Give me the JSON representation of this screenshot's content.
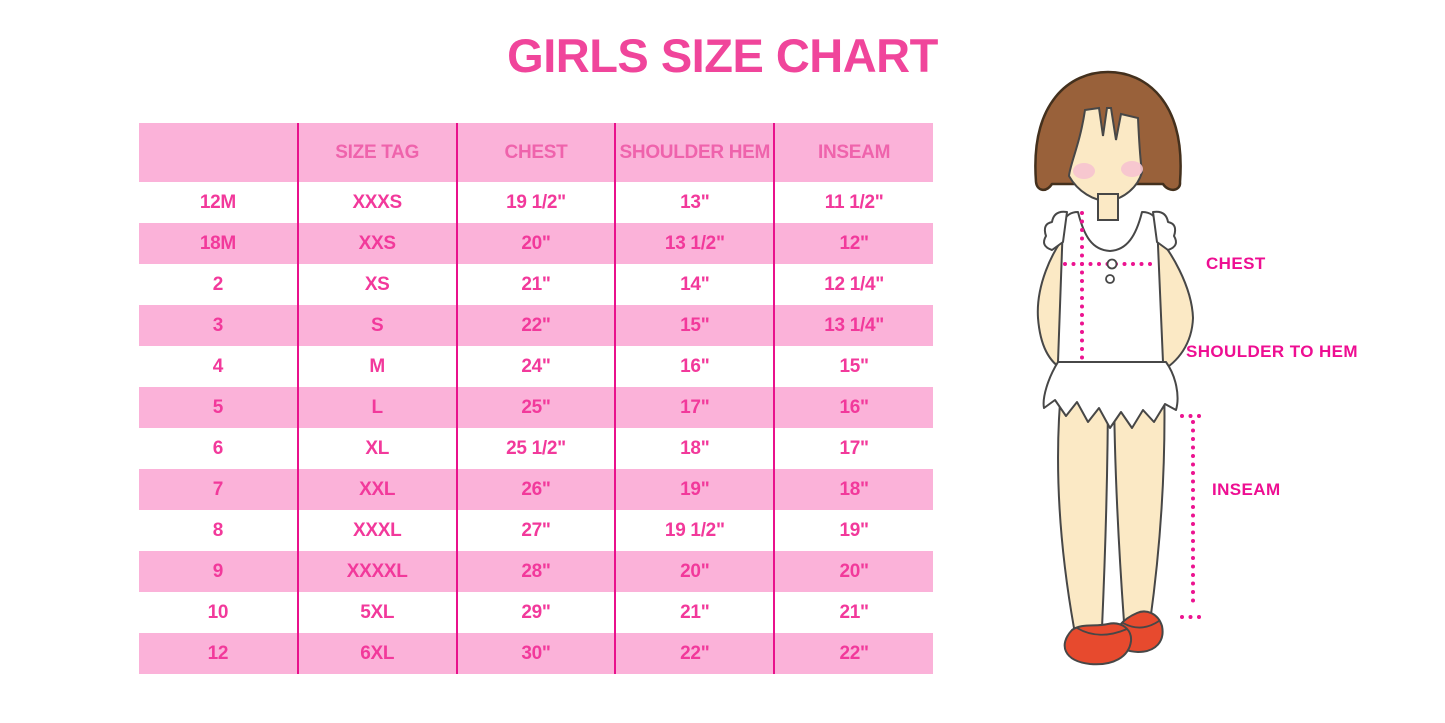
{
  "title": "GIRLS SIZE CHART",
  "colors": {
    "title": "#F0459B",
    "header_text": "#EF63AC",
    "cell_text": "#F2399B",
    "stripe": "#FBB2D9",
    "rule": "#E9118C",
    "label": "#EE0E92",
    "dotted": "#EC1390",
    "hair": "#99613A",
    "hair_outline": "#43301D",
    "skin": "#FBE9C5",
    "outline": "#474747",
    "blush": "#F6C3CF",
    "shoe": "#E74A2E",
    "garment": "#FFFFFF"
  },
  "chart_data": {
    "type": "table",
    "title": "GIRLS SIZE CHART",
    "columns": [
      "",
      "SIZE TAG",
      "CHEST",
      "SHOULDER HEM",
      "INSEAM"
    ],
    "rows": [
      [
        "12M",
        "XXXS",
        "19 1/2\"",
        "13\"",
        "11 1/2\""
      ],
      [
        "18M",
        "XXS",
        "20\"",
        "13 1/2\"",
        "12\""
      ],
      [
        "2",
        "XS",
        "21\"",
        "14\"",
        "12 1/4\""
      ],
      [
        "3",
        "S",
        "22\"",
        "15\"",
        "13 1/4\""
      ],
      [
        "4",
        "M",
        "24\"",
        "16\"",
        "15\""
      ],
      [
        "5",
        "L",
        "25\"",
        "17\"",
        "16\""
      ],
      [
        "6",
        "XL",
        "25 1/2\"",
        "18\"",
        "17\""
      ],
      [
        "7",
        "XXL",
        "26\"",
        "19\"",
        "18\""
      ],
      [
        "8",
        "XXXL",
        "27\"",
        "19 1/2\"",
        "19\""
      ],
      [
        "9",
        "XXXXL",
        "28\"",
        "20\"",
        "20\""
      ],
      [
        "10",
        "5XL",
        "29\"",
        "21\"",
        "21\""
      ],
      [
        "12",
        "6XL",
        "30\"",
        "22\"",
        "22\""
      ]
    ]
  },
  "figure": {
    "chest_label": "CHEST",
    "shoulder_to_hem_label": "SHOULDER TO HEM",
    "inseam_label": "INSEAM"
  }
}
